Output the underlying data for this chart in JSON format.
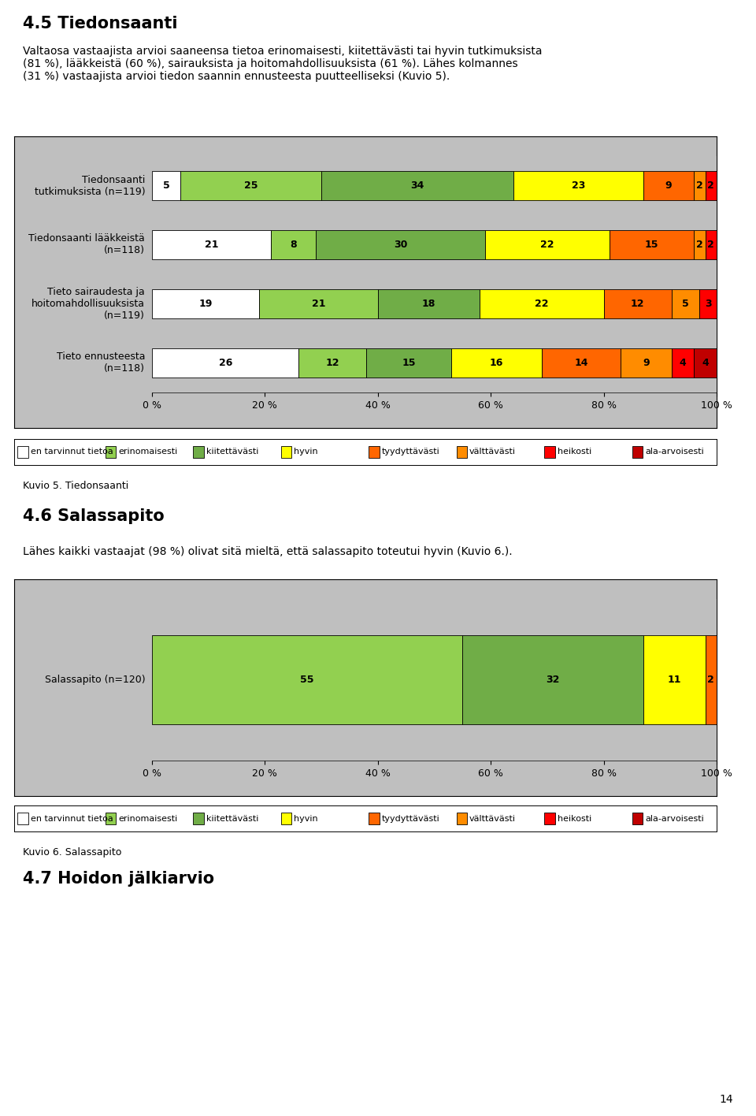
{
  "title1": "4.5 Tiedonsaanti",
  "body1": "Valtaosa vastaajista arvioi saaneensa tietoa erinomaisesti, kiitettävästi tai hyvin tutkimuksista\n(81 %), lääkkeistä (60 %), sairauksista ja hoitomahdollisuuksista (61 %). Lähes kolmannes\n(31 %) vastaajista arvioi tiedon saannin ennusteesta puutteelliseksi (Kuvio 5).",
  "chart1_rows": [
    {
      "label": "Tiedonsaanti\ntutkimuksista (n=119)",
      "values": [
        5,
        25,
        34,
        23,
        9,
        2,
        2,
        0
      ]
    },
    {
      "label": "Tiedonsaanti lääkkeistä\n(n=118)",
      "values": [
        21,
        8,
        30,
        22,
        15,
        2,
        2,
        0
      ]
    },
    {
      "label": "Tieto sairaudesta ja\nhoitomahdollisuuksista\n(n=119)",
      "values": [
        19,
        21,
        18,
        22,
        12,
        5,
        3,
        0
      ]
    },
    {
      "label": "Tieto ennusteesta\n(n=118)",
      "values": [
        26,
        12,
        15,
        16,
        14,
        9,
        4,
        4
      ]
    }
  ],
  "colors": [
    "#ffffff",
    "#92d050",
    "#70ad47",
    "#ffff00",
    "#ff6600",
    "#ff8c00",
    "#ff0000",
    "#c00000"
  ],
  "legend_labels": [
    "en tarvinnut tietoa",
    "erinomaisesti",
    "kiitettävästi",
    "hyvin",
    "tyydyttävästi",
    "välttävästi",
    "heikosti",
    "ala-arvoisesti"
  ],
  "caption1": "Kuvio 5. Tiedonsaanti",
  "title2": "4.6 Salassapito",
  "body2": "Lähes kaikki vastaajat (98 %) olivat sitä mieltä, että salassapito toteutui hyvin (Kuvio 6.).",
  "chart2_rows": [
    {
      "label": "Salassapito (n=120)",
      "values": [
        0,
        55,
        32,
        11,
        2,
        0,
        0,
        0
      ]
    }
  ],
  "caption2": "Kuvio 6. Salassapito",
  "title3": "4.7 Hoidon jälkiarvio",
  "page_number": "14",
  "bg_color": "#ffffff",
  "chart_bg": "#bfbfbf",
  "font_size_h1": 15,
  "font_size_body": 10,
  "font_size_bar": 9,
  "font_size_axis": 9,
  "font_size_legend": 8,
  "font_size_caption": 9
}
